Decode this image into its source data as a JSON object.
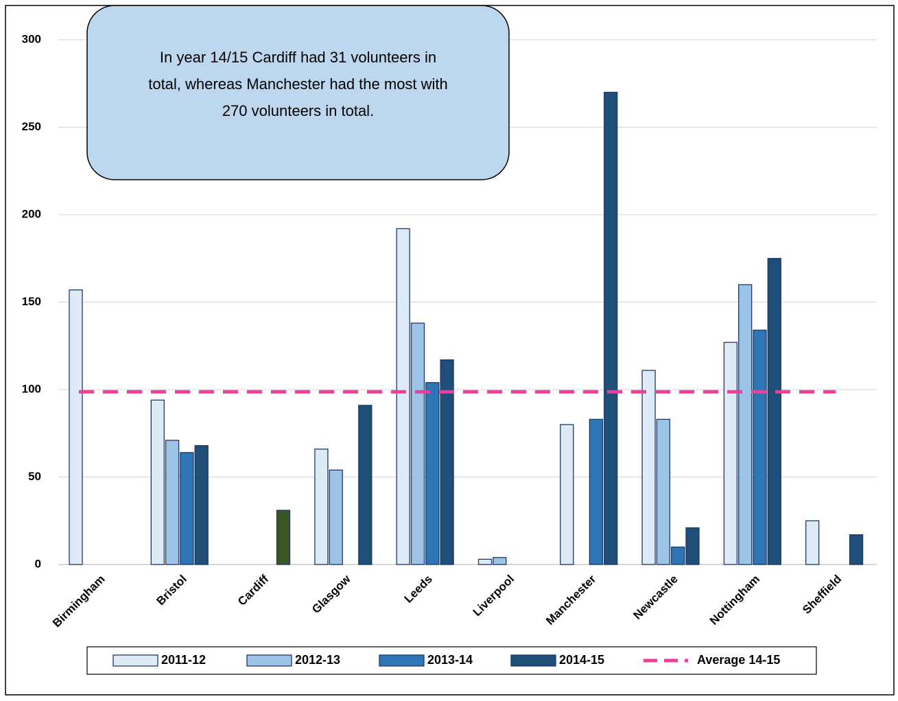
{
  "chart_data": {
    "type": "bar",
    "annotation": [
      "In year 14/15 Cardiff had 31 volunteers in",
      "total, whereas Manchester had the most with",
      "270 volunteers in total."
    ],
    "categories": [
      "Birmingham",
      "Bristol",
      "Cardiff",
      "Glasgow",
      "Leeds",
      "Liverpool",
      "Manchester",
      "Newcastle",
      "Nottingham",
      "Sheffield"
    ],
    "series": [
      {
        "name": "2011-12",
        "color": "#deebf7",
        "values": [
          157,
          94,
          null,
          66,
          192,
          3,
          80,
          111,
          127,
          25
        ]
      },
      {
        "name": "2012-13",
        "color": "#9dc3e6",
        "values": [
          null,
          71,
          null,
          54,
          138,
          4,
          null,
          83,
          160,
          null
        ]
      },
      {
        "name": "2013-14",
        "color": "#2e75b6",
        "values": [
          null,
          64,
          null,
          null,
          104,
          null,
          83,
          10,
          134,
          null
        ]
      },
      {
        "name": "2014-15",
        "color": "#1f4e79",
        "point_colors": {
          "2": "#375623"
        },
        "values": [
          null,
          68,
          31,
          91,
          117,
          null,
          270,
          21,
          175,
          17
        ]
      }
    ],
    "average": {
      "name": "Average 14-15",
      "color": "#f03c9a",
      "value": 98.75
    },
    "ylim": [
      0,
      300
    ],
    "yticks": [
      0,
      50,
      100,
      150,
      200,
      250,
      300
    ],
    "grid": true,
    "legend": "bottom"
  }
}
